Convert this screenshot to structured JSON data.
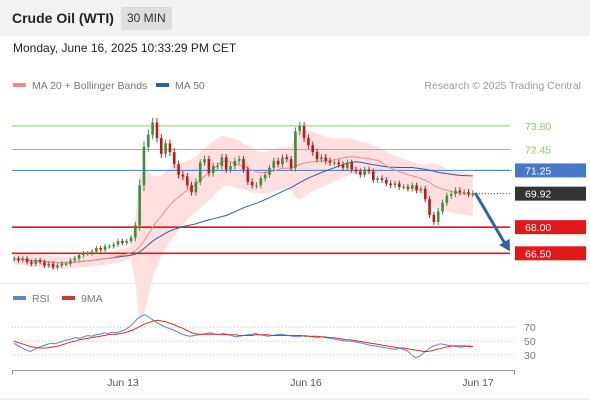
{
  "header": {
    "title": "Crude Oil (WTI)",
    "timeframe": "30 MIN"
  },
  "datetime": "Monday, June 16, 2025 10:33:29 PM CET",
  "legend": {
    "ma20": {
      "label": "MA 20 + Bollinger Bands",
      "color": "#f08c8c"
    },
    "ma50": {
      "label": "MA 50",
      "color": "#2f5f9e"
    }
  },
  "research": "Research © 2025 Trading Central",
  "colors": {
    "up": "#3d8f3d",
    "down": "#c01818",
    "resistance": "#8ecb6f",
    "support": "#e01818",
    "pivot": "#4a78c9",
    "bollinger": "#ffd9d9",
    "arrow": "#2e63a6",
    "rsi": "#5b86d6",
    "rsi_ma": "#d93030"
  },
  "chart_data": [
    {
      "type": "candlestick",
      "x_labels": [
        "Jun 13",
        "Jun 16",
        "Jun 17"
      ],
      "ylim": [
        64.8,
        75.4
      ],
      "levels": [
        {
          "label": "73.80",
          "value": 73.8,
          "kind": "resistance"
        },
        {
          "label": "72.45",
          "value": 72.45,
          "kind": "resistance"
        },
        {
          "label": "71.25",
          "value": 71.25,
          "kind": "pivot"
        },
        {
          "label": "68.00",
          "value": 68.0,
          "kind": "support"
        },
        {
          "label": "66.50",
          "value": 66.5,
          "kind": "support"
        }
      ],
      "last_price": {
        "label": "69.92",
        "value": 69.92
      },
      "forecast_arrow": {
        "from": 69.9,
        "to": 66.5,
        "direction": "down"
      },
      "close": [
        66.2,
        66.1,
        66.2,
        66.0,
        65.9,
        66.1,
        66.0,
        65.8,
        65.9,
        65.7,
        65.8,
        65.9,
        65.9,
        66.1,
        66.2,
        66.4,
        66.5,
        66.5,
        66.6,
        66.8,
        66.7,
        66.9,
        66.9,
        67.0,
        67.2,
        67.1,
        67.2,
        67.4,
        68.1,
        70.4,
        72.6,
        73.3,
        74.0,
        73.1,
        72.2,
        72.8,
        72.3,
        71.6,
        71.0,
        70.9,
        70.4,
        70.0,
        70.6,
        71.7,
        71.9,
        71.1,
        71.5,
        71.5,
        72.0,
        71.3,
        71.5,
        71.8,
        71.9,
        71.3,
        70.6,
        70.4,
        70.4,
        70.8,
        71.0,
        71.4,
        71.8,
        71.6,
        72.0,
        71.9,
        71.4,
        73.5,
        73.8,
        73.1,
        72.7,
        72.3,
        71.9,
        72.0,
        71.8,
        71.7,
        71.7,
        71.6,
        71.4,
        71.7,
        71.3,
        71.2,
        71.0,
        71.3,
        71.2,
        70.7,
        70.8,
        70.7,
        70.5,
        70.4,
        70.5,
        70.3,
        70.3,
        70.2,
        70.4,
        70.1,
        70.2,
        69.6,
        68.7,
        68.3,
        68.9,
        69.4,
        69.8,
        69.9,
        70.1,
        70.0,
        70.0,
        69.9,
        69.92
      ],
      "volatility_regime": [
        0.35,
        0.35,
        0.35,
        0.35,
        0.35,
        0.35,
        0.35,
        0.35,
        0.35,
        0.35,
        0.35,
        0.35,
        0.35,
        0.35,
        0.35,
        0.35,
        0.35,
        0.35,
        0.35,
        0.35,
        0.35,
        0.35,
        0.35,
        0.35,
        0.35,
        0.35,
        0.35,
        0.35,
        1.8,
        4.2,
        4.2,
        3.6,
        2.9,
        2.6,
        2.3,
        2.2,
        2.1,
        2.0,
        1.9,
        1.8,
        1.7,
        1.6,
        1.6,
        1.6,
        1.6,
        1.6,
        1.6,
        1.5,
        1.5,
        1.4,
        1.4,
        1.4,
        1.4,
        1.3,
        1.3,
        1.3,
        1.2,
        1.2,
        1.2,
        1.2,
        1.2,
        1.2,
        1.2,
        1.2,
        1.2,
        1.8,
        2.0,
        1.9,
        1.8,
        1.7,
        1.6,
        1.5,
        1.4,
        1.3,
        1.2,
        1.2,
        1.1,
        1.1,
        1.0,
        1.0,
        0.9,
        0.9,
        0.9,
        0.8,
        0.8,
        0.8,
        0.8,
        0.8,
        0.8,
        0.8,
        0.8,
        0.8,
        0.8,
        0.8,
        0.8,
        0.9,
        1.1,
        1.3,
        1.3,
        1.3,
        1.2,
        1.2,
        1.2,
        1.2,
        1.2,
        1.2,
        1.2
      ]
    },
    {
      "type": "line",
      "title": "RSI",
      "ylim": [
        14,
        92
      ],
      "ticks": [
        70,
        50,
        30
      ],
      "series": [
        {
          "name": "RSI",
          "values": [
            47,
            43,
            40,
            37,
            35,
            38,
            41,
            43,
            45,
            47,
            46,
            48,
            50,
            52,
            53,
            55,
            54,
            56,
            58,
            57,
            59,
            60,
            62,
            61,
            63,
            62,
            64,
            66,
            70,
            75,
            82,
            86,
            88,
            84,
            80,
            76,
            73,
            70,
            68,
            66,
            63,
            60,
            58,
            57,
            58,
            59,
            60,
            61,
            62,
            60,
            59,
            61,
            60,
            58,
            56,
            57,
            58,
            59,
            60,
            61,
            59,
            58,
            57,
            58,
            59,
            60,
            59,
            58,
            57,
            56,
            57,
            58,
            57,
            56,
            55,
            56,
            55,
            54,
            53,
            52,
            51,
            50,
            50,
            49,
            48,
            47,
            45,
            44,
            43,
            42,
            41,
            40,
            39,
            38,
            40,
            38,
            36,
            30,
            26,
            28,
            33,
            38,
            42,
            44,
            46,
            45,
            44,
            43,
            42,
            41,
            42,
            43,
            42
          ],
          "color": "#5b86d6"
        },
        {
          "name": "9MA",
          "values": [
            50,
            48,
            46,
            44,
            42,
            41,
            40,
            40,
            40,
            41,
            42,
            43,
            45,
            47,
            49,
            50,
            52,
            53,
            54,
            55,
            56,
            57,
            58,
            59,
            60,
            60,
            61,
            62,
            64,
            66,
            69,
            72,
            75,
            77,
            79,
            80,
            79,
            78,
            76,
            74,
            71,
            69,
            66,
            63,
            61,
            60,
            60,
            60,
            60,
            60,
            60,
            59,
            59,
            59,
            59,
            58,
            58,
            58,
            58,
            59,
            59,
            59,
            59,
            58,
            58,
            58,
            58,
            58,
            58,
            58,
            58,
            57,
            57,
            57,
            57,
            56,
            56,
            55,
            55,
            54,
            53,
            52,
            52,
            51,
            50,
            49,
            48,
            47,
            46,
            45,
            44,
            43,
            42,
            41,
            40,
            40,
            39,
            38,
            37,
            36,
            35,
            35,
            36,
            38,
            39,
            41,
            42,
            43,
            43,
            43,
            43,
            42,
            42
          ],
          "color": "#d93030"
        }
      ]
    }
  ]
}
